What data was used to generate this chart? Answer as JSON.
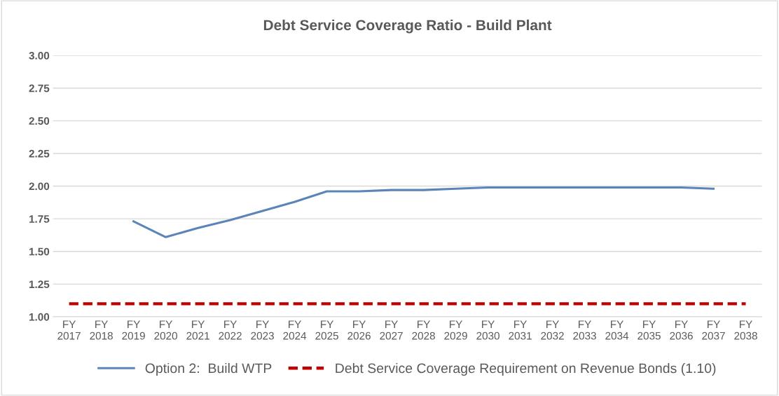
{
  "chart_data": {
    "type": "line",
    "title": "Debt Service Coverage Ratio - Build Plant",
    "categories": [
      "FY\n2017",
      "FY\n2018",
      "FY\n2019",
      "FY\n2020",
      "FY\n2021",
      "FY\n2022",
      "FY\n2023",
      "FY\n2024",
      "FY\n2025",
      "FY\n2026",
      "FY\n2027",
      "FY\n2028",
      "FY\n2029",
      "FY\n2030",
      "FY\n2031",
      "FY\n2032",
      "FY\n2033",
      "FY\n2034",
      "FY\n2035",
      "FY\n2036",
      "FY\n2037",
      "FY\n2038"
    ],
    "ylim": [
      1.0,
      3.0
    ],
    "yticks": [
      {
        "value": 1.0,
        "label": "1.00"
      },
      {
        "value": 1.25,
        "label": "1.25"
      },
      {
        "value": 1.5,
        "label": "1.50"
      },
      {
        "value": 1.75,
        "label": "1.75"
      },
      {
        "value": 2.0,
        "label": "2.00"
      },
      {
        "value": 2.25,
        "label": "2.25"
      },
      {
        "value": 2.5,
        "label": "2.50"
      },
      {
        "value": 2.75,
        "label": "2.75"
      },
      {
        "value": 3.0,
        "label": "3.00"
      }
    ],
    "grid": "y",
    "legend": "bottom",
    "marker": "none",
    "series": [
      {
        "name": "Option 2:  Build WTP",
        "color": "#5b84b8",
        "line_style": "solid",
        "values": [
          null,
          null,
          1.73,
          1.61,
          1.68,
          1.74,
          1.81,
          1.88,
          1.96,
          1.96,
          1.97,
          1.97,
          1.98,
          1.99,
          1.99,
          1.99,
          1.99,
          1.99,
          1.99,
          1.99,
          1.98,
          null
        ]
      },
      {
        "name": "Debt Service Coverage Requirement on Revenue Bonds (1.10)",
        "color": "#c00000",
        "line_style": "dashed",
        "values": [
          1.1,
          1.1,
          1.1,
          1.1,
          1.1,
          1.1,
          1.1,
          1.1,
          1.1,
          1.1,
          1.1,
          1.1,
          1.1,
          1.1,
          1.1,
          1.1,
          1.1,
          1.1,
          1.1,
          1.1,
          1.1,
          1.1
        ]
      }
    ]
  }
}
